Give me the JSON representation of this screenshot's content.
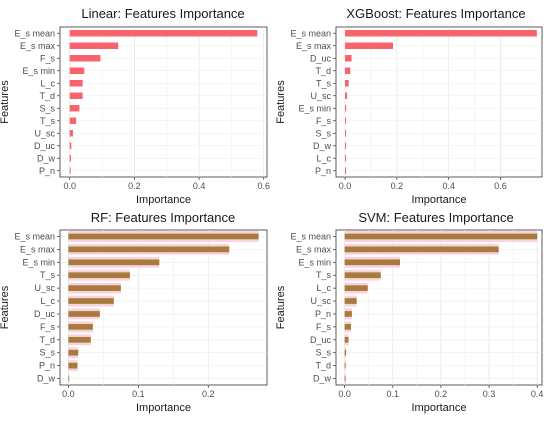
{
  "chart_data": [
    {
      "type": "bar",
      "orientation": "horizontal",
      "title": "Linear: Features Importance",
      "xlabel": "Importance",
      "ylabel": "Features",
      "xlim": [
        -0.03,
        0.61
      ],
      "xticks": [
        0.0,
        0.2,
        0.4,
        0.6
      ],
      "xtick_labels": [
        "0.0",
        "0.2",
        "0.4",
        "0.6"
      ],
      "grid": true,
      "color": "#F8646C",
      "categories": [
        "E_s mean",
        "E_s max",
        "F_s",
        "E_s min",
        "L_c",
        "T_d",
        "S_s",
        "T_s",
        "U_sc",
        "D_uc",
        "D_w",
        "P_n"
      ],
      "values": [
        0.58,
        0.15,
        0.095,
        0.045,
        0.04,
        0.04,
        0.03,
        0.02,
        0.01,
        0.005,
        0.004,
        0.003
      ]
    },
    {
      "type": "bar",
      "orientation": "horizontal",
      "title": "XGBoost: Features Importance",
      "xlabel": "Importance",
      "ylabel": "Features",
      "xlim": [
        -0.035,
        0.76
      ],
      "xticks": [
        0.0,
        0.2,
        0.4,
        0.6
      ],
      "xtick_labels": [
        "0.0",
        "0.2",
        "0.4",
        "0.6"
      ],
      "grid": true,
      "color": "#F8646C",
      "categories": [
        "E_s mean",
        "E_s max",
        "D_uc",
        "T_d",
        "T_s",
        "U_sc",
        "E_s min",
        "F_s",
        "S_s",
        "D_w",
        "L_c",
        "P_n"
      ],
      "values": [
        0.74,
        0.185,
        0.025,
        0.02,
        0.014,
        0.008,
        0.004,
        0.003,
        0.002,
        0.001,
        0.001,
        0.003
      ]
    },
    {
      "type": "bar",
      "orientation": "horizontal",
      "title": "RF: Features Importance",
      "xlabel": "Importance",
      "ylabel": "Features",
      "xlim": [
        -0.012,
        0.284
      ],
      "xticks": [
        0.0,
        0.1,
        0.2
      ],
      "xtick_labels": [
        "0.0",
        "0.1",
        "0.2"
      ],
      "grid": true,
      "color": "#F8646C",
      "secondary_color": "#A87B3C",
      "categories": [
        "E_s mean",
        "E_s max",
        "E_s min",
        "T_s",
        "U_sc",
        "L_c",
        "D_uc",
        "F_s",
        "T_d",
        "S_s",
        "P_n",
        "D_w"
      ],
      "values": [
        0.272,
        0.23,
        0.13,
        0.088,
        0.075,
        0.065,
        0.045,
        0.035,
        0.032,
        0.014,
        0.013,
        0.001
      ],
      "secondary_values": [
        0.272,
        0.23,
        0.13,
        0.088,
        0.075,
        0.065,
        0.045,
        0.035,
        0.032,
        0.014,
        0.013,
        0.001
      ]
    },
    {
      "type": "bar",
      "orientation": "horizontal",
      "title": "SVM: Features Importance",
      "xlabel": "Importance",
      "ylabel": "Features",
      "xlim": [
        -0.018,
        0.41
      ],
      "xticks": [
        0.0,
        0.1,
        0.2,
        0.3,
        0.4
      ],
      "xtick_labels": [
        "0.0",
        "0.1",
        "0.2",
        "0.3",
        "0.4"
      ],
      "grid": true,
      "color": "#F8646C",
      "secondary_color": "#A87B3C",
      "categories": [
        "E_s mean",
        "E_s max",
        "E_s min",
        "T_s",
        "L_c",
        "U_sc",
        "P_n",
        "F_s",
        "D_uc",
        "S_s",
        "T_d",
        "D_w"
      ],
      "values": [
        0.4,
        0.32,
        0.115,
        0.075,
        0.048,
        0.025,
        0.015,
        0.013,
        0.008,
        0.003,
        0.002,
        0.002
      ],
      "secondary_values": [
        0.4,
        0.32,
        0.115,
        0.075,
        0.048,
        0.025,
        0.015,
        0.013,
        0.008,
        0.003,
        0.002,
        0.002
      ]
    }
  ]
}
